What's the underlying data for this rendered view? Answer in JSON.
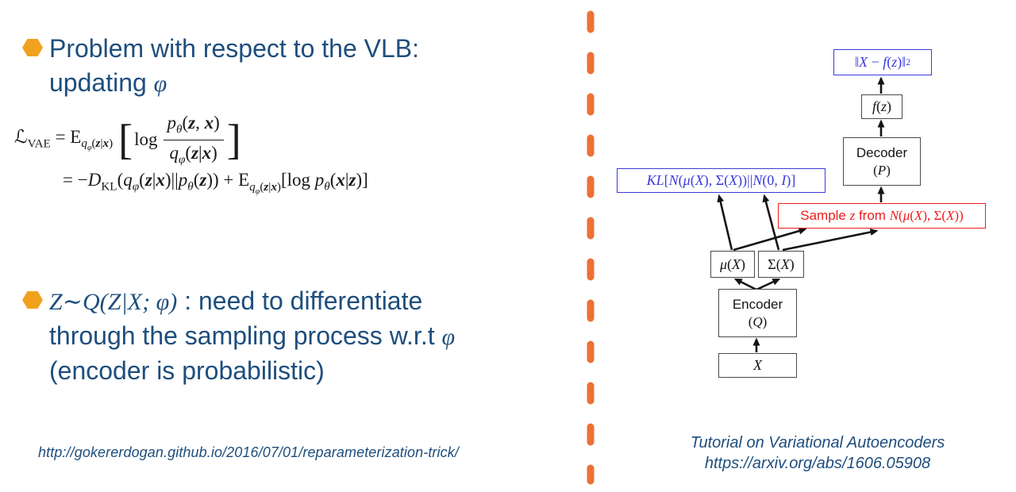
{
  "colors": {
    "navy": "#1e4e7d",
    "gold": "#f0a21f",
    "orange": "#ed7036",
    "blue": "#3b3bdb",
    "red": "#ee1c1c",
    "boxline": "#4a4a4a"
  },
  "slide": {
    "bullet1": {
      "line1": "Problem with respect to the VLB:",
      "line2_text": "updating ",
      "line2_math": "φ"
    },
    "formula": {
      "line1_html": "<span class='seg'><span class='scrL'>ℒ</span><sub>VAE</sub> = E<sub><i>q</i><sub><i>φ</i></sub>(<b><i>z</i></b>|<b><i>x</i></b>)</sub></span><span class='br'>[</span><span class='seg'>log</span><span class='frac'><span class='nu'><i>p</i><sub><i>θ</i></sub>(<b><i>z</i></b>, <b><i>x</i></b>)</span><span class='de'><i>q</i><sub><i>φ</i></sub>(<b><i>z</i></b>|<b><i>x</i></b>)</span></span><span class='br'>]</span>",
      "line2_html": "= −<i>D</i><sub>KL</sub>(<i>q</i><sub><i>φ</i></sub>(<b><i>z</i></b>|<b><i>x</i></b>)||<i>p</i><sub><i>θ</i></sub>(<b><i>z</i></b>)) + E<sub><i>q</i><sub><i>φ</i></sub>(<b><i>z</i></b>|<b><i>x</i></b>)</sub>[log <i>p</i><sub><i>θ</i></sub>(<b><i>x</i></b>|<b><i>z</i></b>)]"
    },
    "bullet2": {
      "line1_math_html": "<i>Z</i>∼<i>Q</i>(<i>Z</i>|<i>X</i>; <i>φ</i>)",
      "line1_text": " : need to differentiate",
      "line2_text": "through the sampling process w.r.t ",
      "line2_math": "φ",
      "line3_text": "(encoder is probabilistic)"
    },
    "source_url": "http://gokererdogan.github.io/2016/07/01/reparameterization-trick/"
  },
  "diagram": {
    "recon_box_html": "‖<i>X</i> − <i>f</i>(<i>z</i>)‖<sup>2</sup>",
    "fz_box_html": "<i>f</i>(<i>z</i>)",
    "decoder_title": "Decoder",
    "decoder_sub_html": "(<i>P</i>)",
    "kl_box_html": "<i>KL</i>[<i>N</i>(<i>μ</i>(<i>X</i>), Σ(<i>X</i>))||<i>N</i>(0, <i>I</i>)]",
    "sample_box_html": "<span class='sans'>Sample </span><i>z</i><span class='sans'> from </span><i>N</i>(<i>μ</i>(<i>X</i>), Σ(<i>X</i>))",
    "mu_box_html": "<i>μ</i>(<i>X</i>)",
    "sigma_box_html": "Σ(<i>X</i>)",
    "encoder_title": "Encoder",
    "encoder_sub_html": "(<i>Q</i>)",
    "x_box_html": "<i>X</i>",
    "citation_line1": "Tutorial on Variational Autoencoders",
    "citation_line2": "https://arxiv.org/abs/1606.05908"
  }
}
